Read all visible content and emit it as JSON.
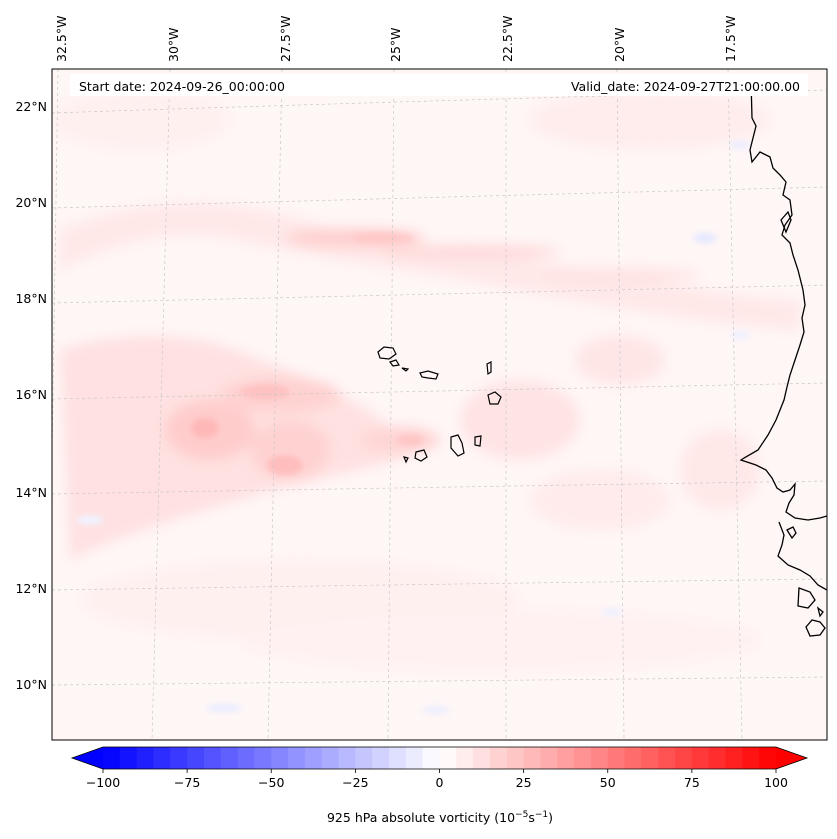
{
  "header": {
    "start_date": "Start date: 2024-09-26_00:00:00",
    "valid_date": "Valid_date: 2024-09-27T21:00:00.00"
  },
  "longitude_labels": [
    "32.5°W",
    "30°W",
    "27.5°W",
    "25°W",
    "22.5°W",
    "20°W",
    "17.5°W"
  ],
  "latitude_labels": [
    "22°N",
    "20°N",
    "18°N",
    "16°N",
    "14°N",
    "12°N",
    "10°N"
  ],
  "colorbar": {
    "label": "925 hPa absolute vorticity (10",
    "label_exp1": "−5",
    "label_mid": "s",
    "label_exp2": "−1",
    "label_end": ")",
    "tick_labels": [
      "−100",
      "−75",
      "−50",
      "−25",
      "0",
      "25",
      "50",
      "75",
      "100"
    ],
    "vmin": -100,
    "vmax": 100,
    "colormap": "bwr",
    "min_color": "#0000ff",
    "mid_color": "#ffffff",
    "max_color": "#ff0000"
  },
  "colors": {
    "coastline": "#000000",
    "gridline": "#c8c8c8",
    "background": "#fff6f6"
  }
}
